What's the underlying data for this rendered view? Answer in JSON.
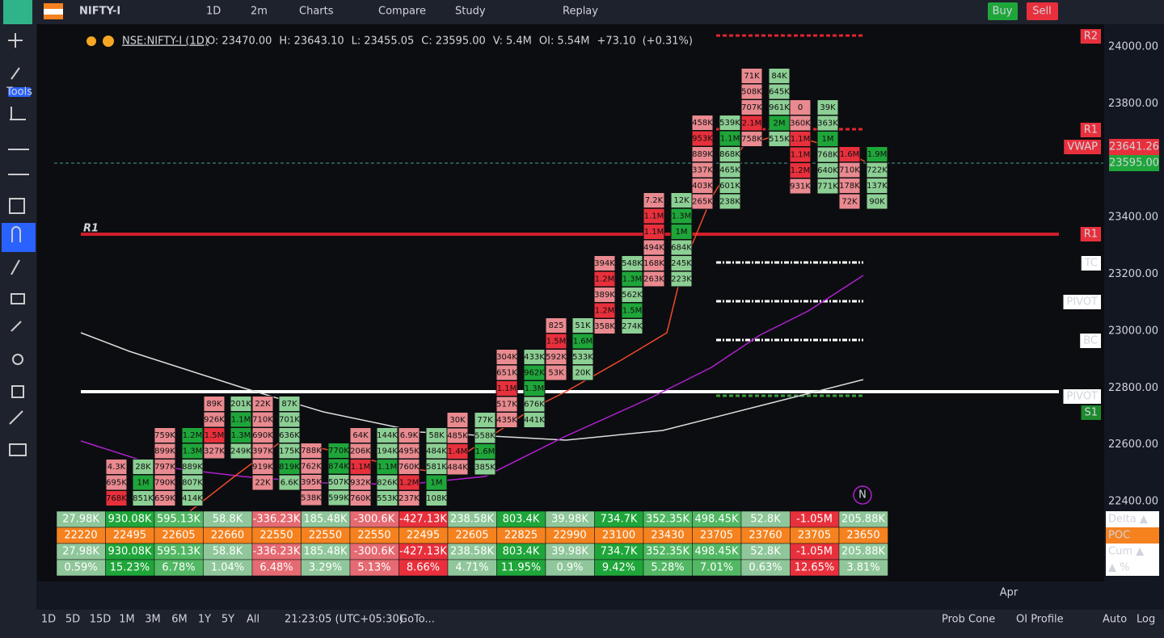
{
  "toolbar": {
    "symbol": "NIFTY-I",
    "interval": "1D",
    "timeframe": "2m",
    "charts": "Charts",
    "compare": "Compare",
    "study": "Study",
    "replay": "Replay",
    "buy": "Buy",
    "sell": "Sell"
  },
  "left_tools": {
    "tools": "Tools"
  },
  "legend": {
    "symbol": "NSE:NIFTY-I (1D)",
    "items": [
      {
        "label": "O:",
        "value": "23470.00"
      },
      {
        "label": "H:",
        "value": "23643.10"
      },
      {
        "label": "L:",
        "value": "23455.05"
      },
      {
        "label": "C:",
        "value": "23595.00"
      },
      {
        "label": "V:",
        "value": "5.4M"
      },
      {
        "label": "OI:",
        "value": "5.54M"
      }
    ],
    "change": "+73.10",
    "change_pct": "(+0.31%)"
  },
  "price_axis": {
    "ticks": [
      "24000.00",
      "23800.00",
      "23400.00",
      "23200.00",
      "23000.00",
      "22800.00",
      "22600.00",
      "22400.00"
    ],
    "badges": [
      {
        "text": "23641.26",
        "color": "#e8303c"
      },
      {
        "text": "23595.00",
        "color": "#1fa63a"
      }
    ]
  },
  "levels": [
    {
      "text": "R2",
      "style": "red"
    },
    {
      "text": "R1",
      "style": "red"
    },
    {
      "text": "VWAP",
      "style": "red"
    },
    {
      "text": "R1",
      "style": "red"
    },
    {
      "text": "TC",
      "style": "white"
    },
    {
      "text": "PIVOT",
      "style": "white"
    },
    {
      "text": "BC",
      "style": "white"
    },
    {
      "text": "PIVOT",
      "style": "white"
    },
    {
      "text": "S1",
      "style": "green"
    }
  ],
  "chart_label": "R1",
  "marker": "N",
  "time_axis": {
    "label": "Apr"
  },
  "footprint": [
    {
      "cells": [
        "4.3K",
        "695K",
        "768K"
      ],
      "colors": [
        "#e98a90",
        "#e98a90",
        "#e8303c"
      ]
    },
    {
      "cells": [
        "28K",
        "1M",
        "851K"
      ],
      "colors": [
        "#8ccf94",
        "#1fa63a",
        "#8ccf94"
      ]
    },
    {
      "cells": [
        "759K",
        "899K",
        "797K",
        "790K",
        "659K"
      ],
      "colors": [
        "#e98a90",
        "#e98a90",
        "#e98a90",
        "#e98a90",
        "#e98a90"
      ]
    },
    {
      "cells": [
        "1.2M",
        "1.3M",
        "889K",
        "807K",
        "414K"
      ],
      "colors": [
        "#1fa63a",
        "#1fa63a",
        "#8ccf94",
        "#8ccf94",
        "#8ccf94"
      ]
    },
    {
      "cells": [
        "89K",
        "926K",
        "1.5M",
        "327K"
      ],
      "colors": [
        "#e98a90",
        "#e98a90",
        "#e8303c",
        "#e98a90"
      ]
    },
    {
      "cells": [
        "201K",
        "1.1M",
        "1.3M",
        "249K"
      ],
      "colors": [
        "#8ccf94",
        "#1fa63a",
        "#1fa63a",
        "#8ccf94"
      ]
    },
    {
      "cells": [
        "22K",
        "710K",
        "690K",
        "397K",
        "919K",
        "22K"
      ],
      "colors": [
        "#e98a90",
        "#e98a90",
        "#e98a90",
        "#e98a90",
        "#e98a90",
        "#e98a90"
      ]
    },
    {
      "cells": [
        "87K",
        "701K",
        "636K",
        "175K",
        "819K",
        "6.6K"
      ],
      "colors": [
        "#8ccf94",
        "#8ccf94",
        "#8ccf94",
        "#8ccf94",
        "#1fa63a",
        "#8ccf94"
      ]
    },
    {
      "cells": [
        "788K",
        "762K",
        "395K",
        "538K"
      ],
      "colors": [
        "#e98a90",
        "#e98a90",
        "#e98a90",
        "#e98a90"
      ]
    },
    {
      "cells": [
        "770K",
        "874K",
        "507K",
        "599K"
      ],
      "colors": [
        "#1fa63a",
        "#1fa63a",
        "#8ccf94",
        "#8ccf94"
      ]
    },
    {
      "cells": [
        "64K",
        "206K",
        "1.1M",
        "932K",
        "760K"
      ],
      "colors": [
        "#e98a90",
        "#e98a90",
        "#e8303c",
        "#e98a90",
        "#e98a90"
      ]
    },
    {
      "cells": [
        "144K",
        "194K",
        "1.1M",
        "826K",
        "553K"
      ],
      "colors": [
        "#8ccf94",
        "#8ccf94",
        "#1fa63a",
        "#8ccf94",
        "#8ccf94"
      ]
    },
    {
      "cells": [
        "6.9K",
        "495K",
        "760K",
        "1.2M",
        "237K"
      ],
      "colors": [
        "#e98a90",
        "#e98a90",
        "#e98a90",
        "#e8303c",
        "#e98a90"
      ]
    },
    {
      "cells": [
        "58K",
        "484K",
        "581K",
        "1M",
        "108K"
      ],
      "colors": [
        "#8ccf94",
        "#8ccf94",
        "#8ccf94",
        "#1fa63a",
        "#8ccf94"
      ]
    },
    {
      "cells": [
        "30K",
        "485K",
        "1.4M",
        "484K"
      ],
      "colors": [
        "#e98a90",
        "#e98a90",
        "#e8303c",
        "#e98a90"
      ]
    },
    {
      "cells": [
        "77K",
        "558K",
        "1.6M",
        "385K"
      ],
      "colors": [
        "#8ccf94",
        "#8ccf94",
        "#1fa63a",
        "#8ccf94"
      ]
    },
    {
      "cells": [
        "304K",
        "651K",
        "1.1M",
        "517K",
        "435K"
      ],
      "colors": [
        "#e98a90",
        "#e98a90",
        "#e8303c",
        "#e98a90",
        "#e98a90"
      ]
    },
    {
      "cells": [
        "433K",
        "962K",
        "1.3M",
        "676K",
        "441K"
      ],
      "colors": [
        "#8ccf94",
        "#1fa63a",
        "#1fa63a",
        "#8ccf94",
        "#8ccf94"
      ]
    },
    {
      "cells": [
        "825",
        "1.5M",
        "592K",
        "53K"
      ],
      "colors": [
        "#e98a90",
        "#e8303c",
        "#e98a90",
        "#e98a90"
      ]
    },
    {
      "cells": [
        "51K",
        "1.6M",
        "533K",
        "20K"
      ],
      "colors": [
        "#8ccf94",
        "#1fa63a",
        "#8ccf94",
        "#8ccf94"
      ]
    },
    {
      "cells": [
        "394K",
        "1.2M",
        "389K",
        "1.2M",
        "358K"
      ],
      "colors": [
        "#e98a90",
        "#e8303c",
        "#e98a90",
        "#e8303c",
        "#e98a90"
      ]
    },
    {
      "cells": [
        "548K",
        "1.3M",
        "562K",
        "1.5M",
        "274K"
      ],
      "colors": [
        "#8ccf94",
        "#1fa63a",
        "#8ccf94",
        "#1fa63a",
        "#8ccf94"
      ]
    },
    {
      "cells": [
        "7.2K",
        "1.1M",
        "1.1M",
        "494K",
        "168K",
        "263K"
      ],
      "colors": [
        "#e98a90",
        "#e8303c",
        "#e8303c",
        "#e98a90",
        "#e98a90",
        "#e98a90"
      ]
    },
    {
      "cells": [
        "12K",
        "1.3M",
        "1M",
        "684K",
        "245K",
        "223K"
      ],
      "colors": [
        "#8ccf94",
        "#1fa63a",
        "#1fa63a",
        "#8ccf94",
        "#8ccf94",
        "#8ccf94"
      ]
    },
    {
      "cells": [
        "458K",
        "953K",
        "889K",
        "337K",
        "403K",
        "265K"
      ],
      "colors": [
        "#e98a90",
        "#e8303c",
        "#e98a90",
        "#e98a90",
        "#e98a90",
        "#e98a90"
      ]
    },
    {
      "cells": [
        "539K",
        "1.1M",
        "868K",
        "465K",
        "601K",
        "238K"
      ],
      "colors": [
        "#8ccf94",
        "#1fa63a",
        "#8ccf94",
        "#8ccf94",
        "#8ccf94",
        "#8ccf94"
      ]
    },
    {
      "cells": [
        "71K",
        "508K",
        "707K",
        "2.1M",
        "758K"
      ],
      "colors": [
        "#e98a90",
        "#e98a90",
        "#e98a90",
        "#e8303c",
        "#e98a90"
      ]
    },
    {
      "cells": [
        "84K",
        "645K",
        "961K",
        "2M",
        "515K"
      ],
      "colors": [
        "#8ccf94",
        "#8ccf94",
        "#8ccf94",
        "#1fa63a",
        "#8ccf94"
      ]
    },
    {
      "cells": [
        "0",
        "360K",
        "1.1M",
        "1.1M",
        "1.2M",
        "931K"
      ],
      "colors": [
        "#e98a90",
        "#e98a90",
        "#e8303c",
        "#e8303c",
        "#e8303c",
        "#e98a90"
      ]
    },
    {
      "cells": [
        "39K",
        "363K",
        "1M",
        "768K",
        "640K",
        "771K"
      ],
      "colors": [
        "#8ccf94",
        "#8ccf94",
        "#1fa63a",
        "#8ccf94",
        "#8ccf94",
        "#8ccf94"
      ]
    },
    {
      "cells": [
        "1.6M",
        "710K",
        "178K",
        "72K"
      ],
      "colors": [
        "#e8303c",
        "#e98a90",
        "#e98a90",
        "#e98a90"
      ]
    },
    {
      "cells": [
        "1.9M",
        "722K",
        "137K",
        "90K"
      ],
      "colors": [
        "#1fa63a",
        "#8ccf94",
        "#8ccf94",
        "#8ccf94"
      ]
    }
  ],
  "stats_table": {
    "colors": [
      "#8fc79a",
      "#1fa63a",
      "#52b864",
      "#8fc79a",
      "#e56a72",
      "#8fc79a",
      "#e56a72",
      "#e8303c",
      "#8fc79a",
      "#1fa63a",
      "#8fc79a",
      "#1fa63a",
      "#52b864",
      "#52b864",
      "#8fc79a",
      "#e8303c",
      "#8fc79a"
    ],
    "poc_color": "#f5821f",
    "rows": [
      {
        "label": "Delta ▲",
        "values": [
          "27.98K",
          "930.08K",
          "595.13K",
          "58.8K",
          "-336.23K",
          "185.48K",
          "-300.6K",
          "-427.13K",
          "238.58K",
          "803.4K",
          "39.98K",
          "734.7K",
          "352.35K",
          "498.45K",
          "52.8K",
          "-1.05M",
          "205.88K"
        ]
      },
      {
        "label": "POC",
        "values": [
          "22220",
          "22495",
          "22605",
          "22660",
          "22550",
          "22550",
          "22550",
          "22495",
          "22605",
          "22825",
          "22990",
          "23100",
          "23430",
          "23705",
          "23760",
          "23705",
          "23650"
        ]
      },
      {
        "label": "Cum ▲",
        "values": [
          "27.98K",
          "930.08K",
          "595.13K",
          "58.8K",
          "-336.23K",
          "185.48K",
          "-300.6K",
          "-427.13K",
          "238.58K",
          "803.4K",
          "39.98K",
          "734.7K",
          "352.35K",
          "498.45K",
          "52.8K",
          "-1.05M",
          "205.88K"
        ]
      },
      {
        "label": "▲ %",
        "values": [
          "0.59%",
          "15.23%",
          "6.78%",
          "1.04%",
          "6.48%",
          "3.29%",
          "5.13%",
          "8.66%",
          "4.71%",
          "11.95%",
          "0.9%",
          "9.42%",
          "5.28%",
          "7.01%",
          "0.63%",
          "12.65%",
          "3.81%"
        ]
      }
    ]
  },
  "bottom_bar": {
    "ranges": [
      "1D",
      "5D",
      "15D",
      "1M",
      "3M",
      "6M",
      "1Y",
      "5Y",
      "All"
    ],
    "clock": "21:23:05 (UTC+05:30)",
    "goto": "GoTo...",
    "prob_cone": "Prob Cone",
    "oi_profile": "OI Profile",
    "auto": "Auto",
    "log": "Log"
  }
}
